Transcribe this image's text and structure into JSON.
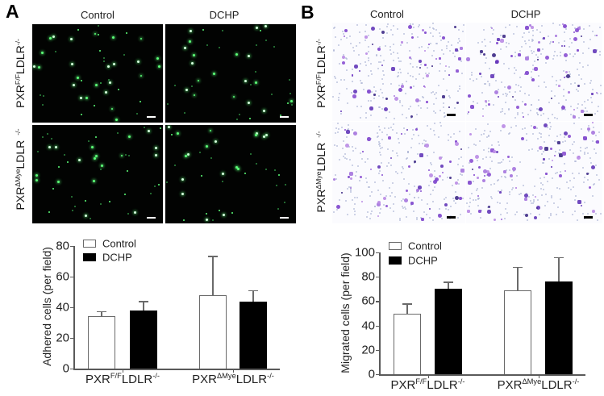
{
  "panel_a": {
    "label": "A",
    "columns": [
      "Control",
      "DCHP"
    ],
    "rows": [
      {
        "base": "PXR",
        "sup": "F/F",
        "gene": "LDLR",
        "ko": "-/-"
      },
      {
        "base": "PXR",
        "sup": "ΔMye",
        "gene": "LDLR",
        "ko": "-/-"
      }
    ],
    "colors": {
      "background": "#020302",
      "cell": "#5cff78",
      "scale_bar": "#ffffff"
    }
  },
  "panel_b": {
    "label": "B",
    "columns": [
      "Control",
      "DCHP"
    ],
    "rows": [
      {
        "base": "PXR",
        "sup": "F/F",
        "gene": "LDLR",
        "ko": "-/-"
      },
      {
        "base": "PXR",
        "sup": "ΔMye",
        "gene": "LDLR",
        "ko": "-/-"
      }
    ],
    "colors": {
      "background": "#fbfbfe",
      "cell": "#8a4fd2",
      "pore": "#a9b2d2",
      "scale_bar": "#000000"
    }
  },
  "chart_data": [
    {
      "type": "bar",
      "panel": "A",
      "title": "",
      "xlabel": "",
      "ylabel": "Adhered cells (per field)",
      "ylim": [
        0,
        80
      ],
      "yticks": [
        "0",
        "20",
        "40",
        "60",
        "80"
      ],
      "grid": false,
      "legend_position": "top-left",
      "categories": [
        {
          "base": "PXR",
          "sup": "F/F",
          "gene": "LDLR",
          "ko": "-/-"
        },
        {
          "base": "PXR",
          "sup": "ΔMye",
          "gene": "LDLR",
          "ko": "-/-"
        }
      ],
      "category_labels": [
        "PXR F/F LDLR -/-",
        "PXR ΔMye LDLR -/-"
      ],
      "series": [
        {
          "name": "Control",
          "style": "open",
          "values": [
            34,
            48
          ],
          "error": [
            3.5,
            25.5
          ]
        },
        {
          "name": "DCHP",
          "style": "filled",
          "values": [
            38,
            43.5
          ],
          "error": [
            6,
            7.5
          ]
        }
      ]
    },
    {
      "type": "bar",
      "panel": "B",
      "title": "",
      "xlabel": "",
      "ylabel": "Migrated cells (per field)",
      "ylim": [
        0,
        100
      ],
      "yticks": [
        "0",
        "20",
        "40",
        "60",
        "80",
        "100"
      ],
      "grid": false,
      "legend_position": "top-left",
      "categories": [
        {
          "base": "PXR",
          "sup": "F/F",
          "gene": "LDLR",
          "ko": "-/-"
        },
        {
          "base": "PXR",
          "sup": "ΔMye",
          "gene": "LDLR",
          "ko": "-/-"
        }
      ],
      "category_labels": [
        "PXR F/F LDLR -/-",
        "PXR ΔMye LDLR -/-"
      ],
      "series": [
        {
          "name": "Control",
          "style": "open",
          "values": [
            50,
            69
          ],
          "error": [
            8,
            19
          ]
        },
        {
          "name": "DCHP",
          "style": "filled",
          "values": [
            70,
            76
          ],
          "error": [
            6,
            20
          ]
        }
      ]
    }
  ]
}
